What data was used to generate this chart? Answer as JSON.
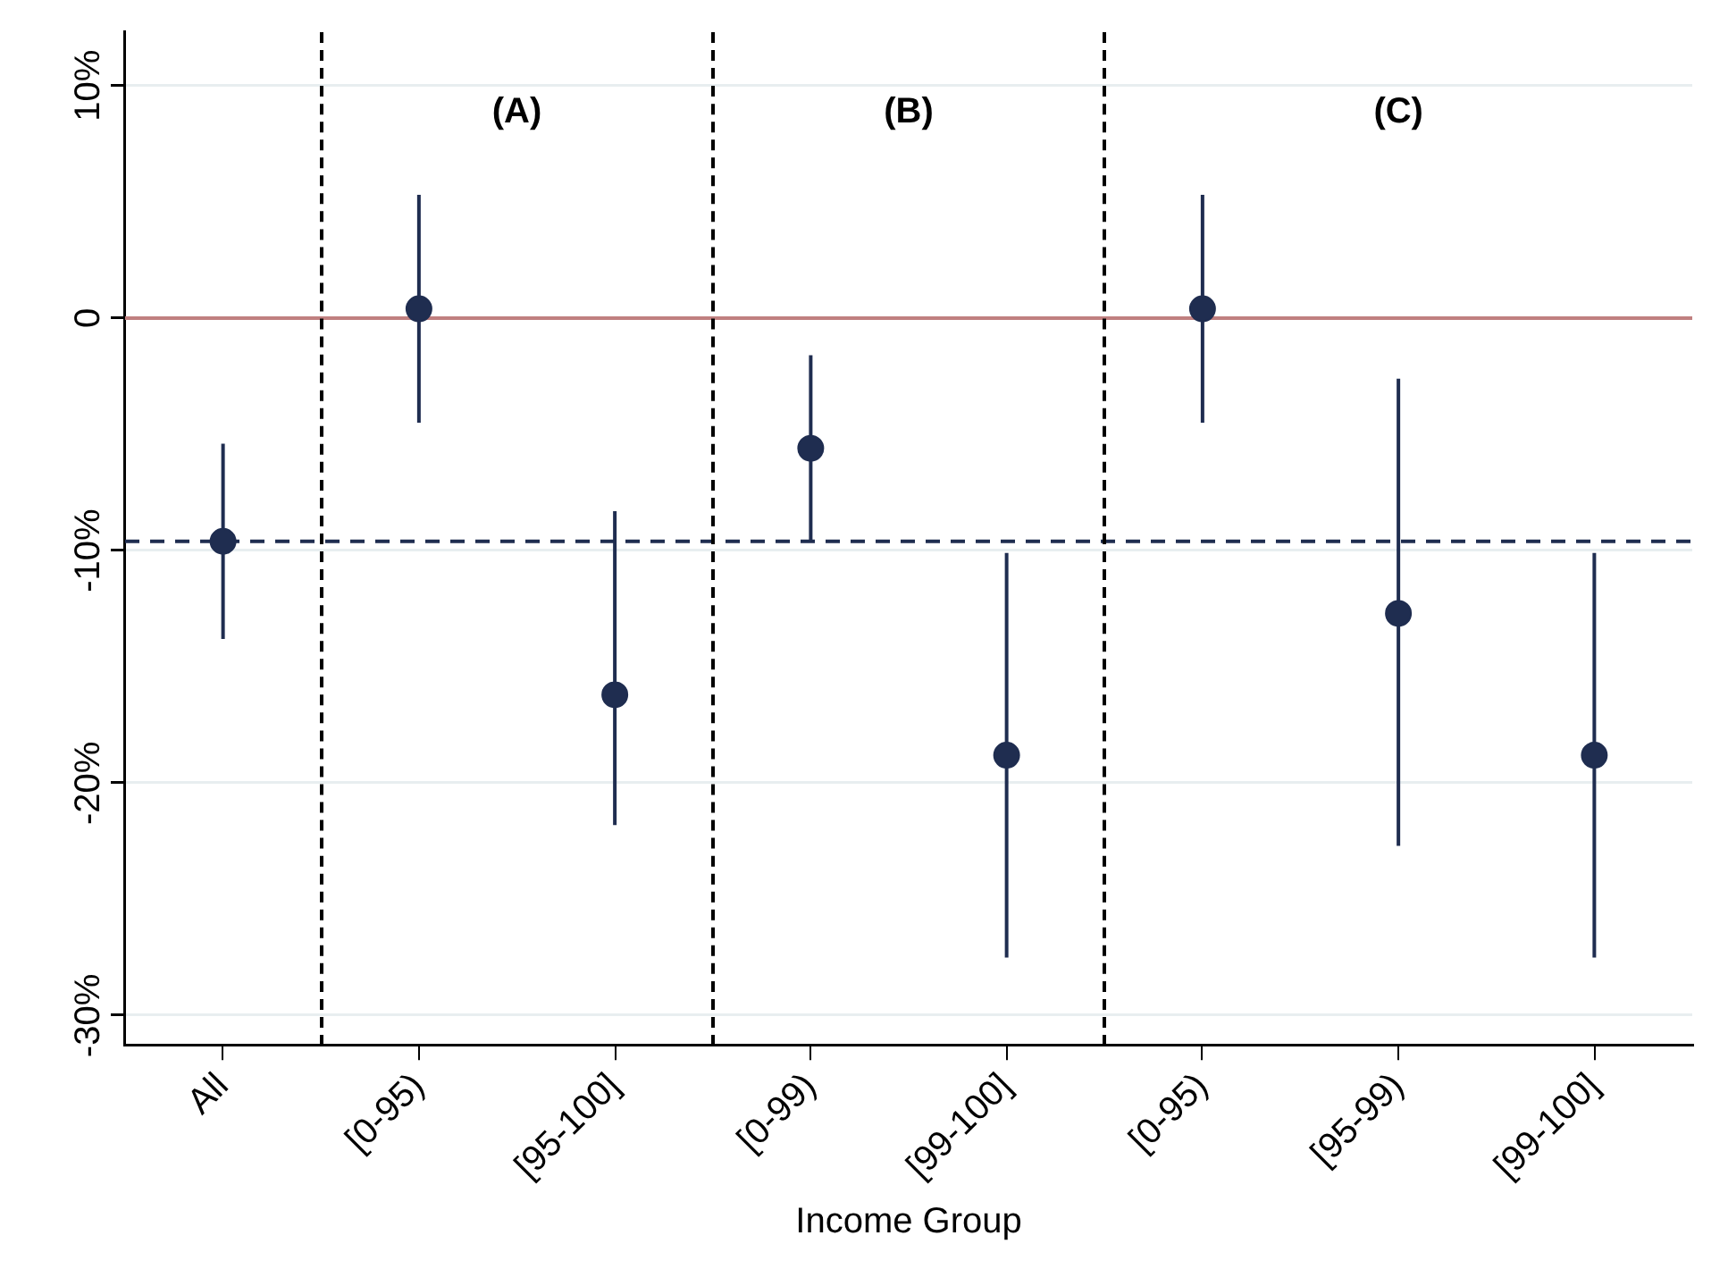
{
  "chart_data": {
    "type": "scatter",
    "xlabel": "Income Group",
    "categories": [
      "All",
      "[0-95)",
      "[95-100]",
      "[0-99)",
      "[99-100]",
      "[0-95)",
      "[95-99)",
      "[99-100]"
    ],
    "ylim": [
      -31.3,
      12.3
    ],
    "yticks": [
      {
        "value": 10,
        "label": "10%"
      },
      {
        "value": 0,
        "label": "0"
      },
      {
        "value": -10,
        "label": "-10%"
      },
      {
        "value": -20,
        "label": "-20%"
      },
      {
        "value": -30,
        "label": "-30%"
      }
    ],
    "series": [
      {
        "color": "#1f2d50",
        "values": [
          -9.6,
          0.4,
          -16.2,
          -5.6,
          -18.8,
          0.4,
          -12.7,
          -18.8
        ],
        "errors": [
          [
            -13.8,
            -5.4
          ],
          [
            -4.5,
            5.3
          ],
          [
            -21.8,
            -8.3
          ],
          [
            -9.6,
            -1.6
          ],
          [
            -27.5,
            -10.1
          ],
          [
            -4.5,
            5.3
          ],
          [
            -22.7,
            -2.6
          ],
          [
            -27.5,
            -10.1
          ]
        ]
      }
    ],
    "ref_lines": [
      {
        "axis": "y",
        "value": 0,
        "color": "#c08080",
        "line_style": "solid"
      },
      {
        "axis": "y",
        "value": -9.6,
        "color": "#1f2d50",
        "line_style": "dashed"
      }
    ],
    "annotations": [
      "(A)",
      "(B)",
      "(C)"
    ],
    "grid": "y",
    "marker": "circle",
    "legend": false
  }
}
